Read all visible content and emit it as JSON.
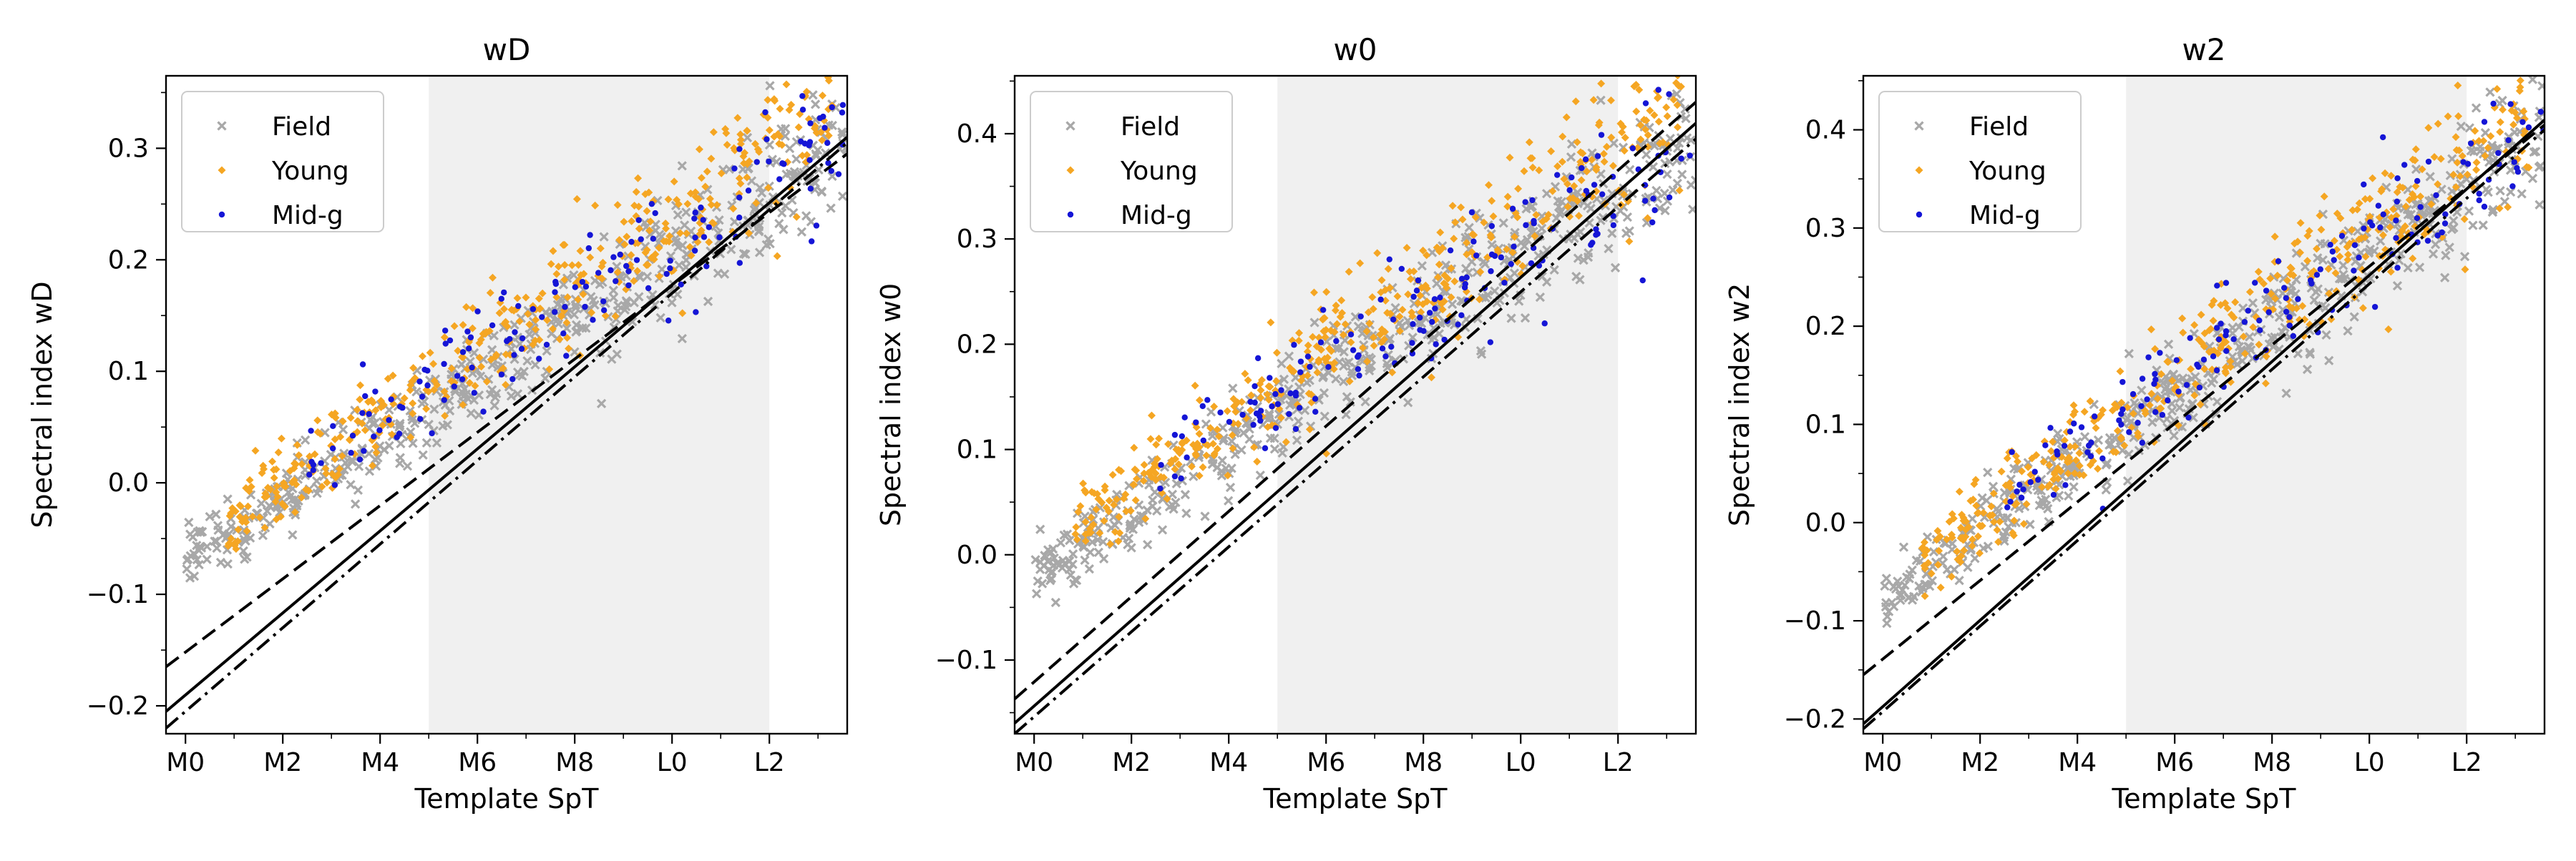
{
  "figure": {
    "description": "Spectral index vs template spectral type, three panels"
  },
  "legend_entries": [
    {
      "label": "Field",
      "color": "#a8a8a8",
      "marker": "x"
    },
    {
      "label": "Young",
      "color": "#f5a623",
      "marker": "diamond"
    },
    {
      "label": "Mid-g",
      "color": "#1515d6",
      "marker": "dot"
    }
  ],
  "chart_data": [
    {
      "type": "scatter",
      "title": "wD",
      "xlabel": "Template SpT",
      "ylabel": "Spectral index wD",
      "xlim": [
        -0.4,
        13.6
      ],
      "ylim": [
        -0.225,
        0.365
      ],
      "xticks": [
        0,
        2,
        4,
        6,
        8,
        10,
        12
      ],
      "xticklabels": [
        "M0",
        "M2",
        "M4",
        "M6",
        "M8",
        "L0",
        "L2"
      ],
      "yticks": [
        -0.2,
        -0.1,
        0.0,
        0.1,
        0.2,
        0.3
      ],
      "yticklabels": [
        "−0.2",
        "−0.1",
        "0.0",
        "0.1",
        "0.2",
        "0.3"
      ],
      "shaded_region": [
        5,
        12
      ],
      "legend_position": "upper-left",
      "fit_lines": [
        {
          "style": "solid",
          "x": [
            -0.4,
            13.6
          ],
          "y": [
            -0.205,
            0.31
          ]
        },
        {
          "style": "dashed",
          "x": [
            -0.4,
            13.6
          ],
          "y": [
            -0.165,
            0.295
          ]
        },
        {
          "style": "dashdot",
          "x": [
            -0.4,
            13.6
          ],
          "y": [
            -0.22,
            0.305
          ]
        }
      ],
      "series": [
        {
          "name": "Field",
          "x_range": [
            0,
            13.6
          ],
          "trend": [
            -0.07,
            0.3
          ],
          "spread": 0.022,
          "n": 520,
          "seed": 11
        },
        {
          "name": "Young",
          "x_range": [
            0.8,
            13.3
          ],
          "trend": [
            -0.06,
            0.34
          ],
          "spread": 0.025,
          "n": 420,
          "seed": 23
        },
        {
          "name": "Mid-g",
          "x_range": [
            2.5,
            13.6
          ],
          "trend": [
            -0.05,
            0.32
          ],
          "spread": 0.025,
          "n": 150,
          "seed": 37
        }
      ]
    },
    {
      "type": "scatter",
      "title": "w0",
      "xlabel": "Template SpT",
      "ylabel": "Spectral index w0",
      "xlim": [
        -0.4,
        13.6
      ],
      "ylim": [
        -0.17,
        0.455
      ],
      "xticks": [
        0,
        2,
        4,
        6,
        8,
        10,
        12
      ],
      "xticklabels": [
        "M0",
        "M2",
        "M4",
        "M6",
        "M8",
        "L0",
        "L2"
      ],
      "yticks": [
        -0.1,
        0.0,
        0.1,
        0.2,
        0.3,
        0.4
      ],
      "yticklabels": [
        "−0.1",
        "0.0",
        "0.1",
        "0.2",
        "0.3",
        "0.4"
      ],
      "shaded_region": [
        5,
        12
      ],
      "legend_position": "upper-left",
      "fit_lines": [
        {
          "style": "solid",
          "x": [
            -0.4,
            13.6
          ],
          "y": [
            -0.16,
            0.41
          ]
        },
        {
          "style": "dashed",
          "x": [
            -0.4,
            13.6
          ],
          "y": [
            -0.137,
            0.43
          ]
        },
        {
          "style": "dashdot",
          "x": [
            -0.4,
            13.6
          ],
          "y": [
            -0.17,
            0.395
          ]
        }
      ],
      "series": [
        {
          "name": "Field",
          "x_range": [
            0,
            13.6
          ],
          "trend": [
            -0.02,
            0.4
          ],
          "spread": 0.025,
          "n": 520,
          "seed": 51
        },
        {
          "name": "Young",
          "x_range": [
            0.8,
            13.3
          ],
          "trend": [
            0.0,
            0.44
          ],
          "spread": 0.028,
          "n": 420,
          "seed": 63
        },
        {
          "name": "Mid-g",
          "x_range": [
            2.5,
            13.6
          ],
          "trend": [
            0.0,
            0.4
          ],
          "spread": 0.028,
          "n": 150,
          "seed": 77
        }
      ]
    },
    {
      "type": "scatter",
      "title": "w2",
      "xlabel": "Template SpT",
      "ylabel": "Spectral index w2",
      "xlim": [
        -0.4,
        13.6
      ],
      "ylim": [
        -0.215,
        0.455
      ],
      "xticks": [
        0,
        2,
        4,
        6,
        8,
        10,
        12
      ],
      "xticklabels": [
        "M0",
        "M2",
        "M4",
        "M6",
        "M8",
        "L0",
        "L2"
      ],
      "yticks": [
        -0.2,
        -0.1,
        0.0,
        0.1,
        0.2,
        0.3,
        0.4
      ],
      "yticklabels": [
        "−0.2",
        "−0.1",
        "0.0",
        "0.1",
        "0.2",
        "0.3",
        "0.4"
      ],
      "shaded_region": [
        5,
        12
      ],
      "legend_position": "upper-left",
      "fit_lines": [
        {
          "style": "solid",
          "x": [
            -0.4,
            13.6
          ],
          "y": [
            -0.205,
            0.41
          ]
        },
        {
          "style": "dashed",
          "x": [
            -0.4,
            13.6
          ],
          "y": [
            -0.155,
            0.405
          ]
        },
        {
          "style": "dashdot",
          "x": [
            -0.4,
            13.6
          ],
          "y": [
            -0.21,
            0.4
          ]
        }
      ],
      "series": [
        {
          "name": "Field",
          "x_range": [
            0,
            13.6
          ],
          "trend": [
            -0.08,
            0.4
          ],
          "spread": 0.025,
          "n": 520,
          "seed": 91
        },
        {
          "name": "Young",
          "x_range": [
            0.8,
            13.3
          ],
          "trend": [
            -0.07,
            0.43
          ],
          "spread": 0.028,
          "n": 420,
          "seed": 103
        },
        {
          "name": "Mid-g",
          "x_range": [
            2.5,
            13.6
          ],
          "trend": [
            -0.06,
            0.41
          ],
          "spread": 0.028,
          "n": 150,
          "seed": 117
        }
      ]
    }
  ]
}
